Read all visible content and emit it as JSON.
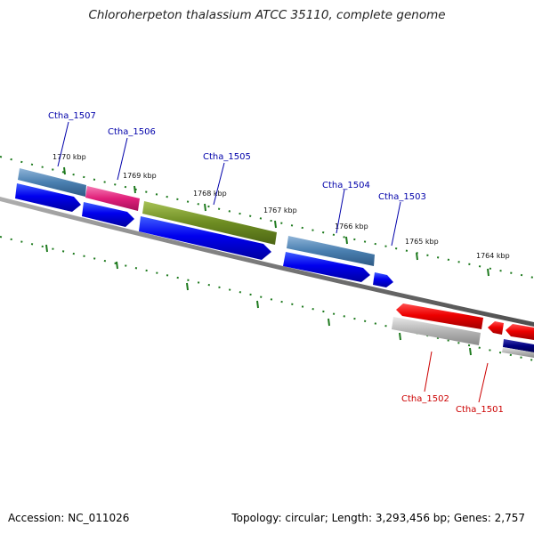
{
  "title": "Chloroherpeton thalassium ATCC 35110, complete genome",
  "footer": {
    "accession": "Accession: NC_011026",
    "summary": "Topology: circular; Length: 3,293,456 bp; Genes: 2,757"
  },
  "scale_labels": [
    "1770 kbp",
    "1769 kbp",
    "1768 kbp",
    "1767 kbp",
    "1766 kbp",
    "1765 kbp",
    "1764 kbp"
  ],
  "gene_labels": {
    "forward": [
      "Ctha_1507",
      "Ctha_1506",
      "Ctha_1505",
      "Ctha_1504",
      "Ctha_1503"
    ],
    "reverse": [
      "Ctha_1502",
      "Ctha_1501"
    ]
  },
  "colors": {
    "backbone": "#7a7a7a",
    "ticks": "#1e7a1e",
    "cds": "#0000ee",
    "label_forward": "#0000aa",
    "label_reverse": "#cc0000",
    "cog_steelblue": "#4a7fb0",
    "cog_pink": "#e0207a",
    "cog_olive": "#6d8c22",
    "cog_gray": "#b0b0b0",
    "cog_red": "#ee0000",
    "cog_navy": "#000080"
  }
}
